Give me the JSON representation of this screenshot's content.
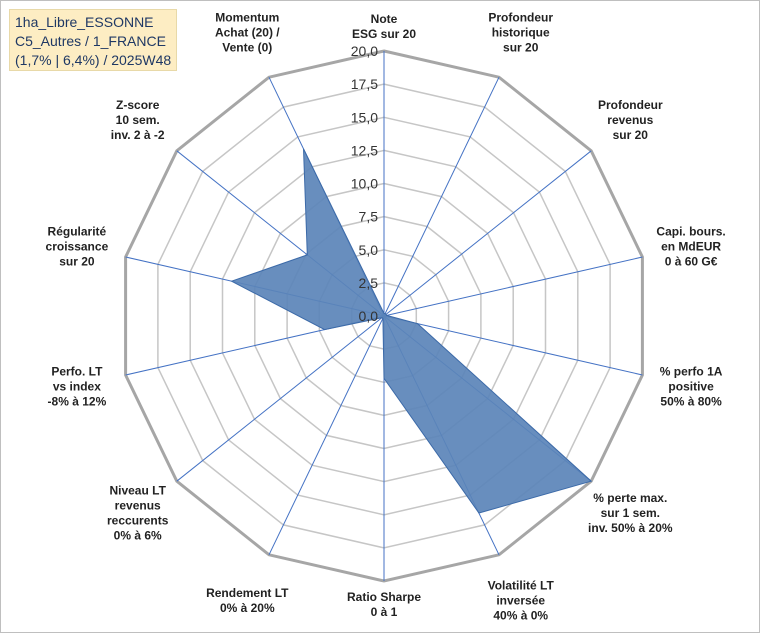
{
  "title_lines": [
    "1ha_Libre_ESSONNE",
    "C5_Autres / 1_FRANCE",
    "(1,7% | 6,4%) / 2025W48"
  ],
  "chart_data": {
    "type": "radar",
    "rmin": 0,
    "rmax": 20,
    "tick_values": [
      0,
      2.5,
      5,
      7.5,
      10,
      12.5,
      15,
      17.5,
      20
    ],
    "tick_labels": [
      "0,0",
      "2,5",
      "5,0",
      "7,5",
      "10,0",
      "12,5",
      "15,0",
      "17,5",
      "20,0"
    ],
    "axes": [
      {
        "label": [
          "Note",
          "ESG sur 20"
        ],
        "value": 0.2
      },
      {
        "label": [
          "Profondeur",
          "historique",
          "sur 20"
        ],
        "value": 0.2
      },
      {
        "label": [
          "Profondeur",
          "revenus",
          "sur 20"
        ],
        "value": 0.2
      },
      {
        "label": [
          "Capi. bours.",
          "en MdEUR",
          "0 à 60 G€"
        ],
        "value": 0.2
      },
      {
        "label": [
          "% perfo 1A",
          "positive",
          "50% à 80%"
        ],
        "value": 2.6
      },
      {
        "label": [
          "% perte max.",
          "sur 1 sem.",
          "inv. 50% à 20%"
        ],
        "value": 20.0
      },
      {
        "label": [
          "Volatilité LT",
          "inversée",
          "40% à 0%"
        ],
        "value": 16.5
      },
      {
        "label": [
          "Ratio Sharpe",
          "0 à 1"
        ],
        "value": 4.7
      },
      {
        "label": [
          "Rendement LT",
          "0% à 20%"
        ],
        "value": 0.2
      },
      {
        "label": [
          "Niveau LT",
          "revenus",
          "reccurents",
          "0% à 6%"
        ],
        "value": 0.2
      },
      {
        "label": [
          "Perfo. LT",
          "vs index",
          "-8% à 12%"
        ],
        "value": 4.6
      },
      {
        "label": [
          "Régularité",
          "croissance",
          "sur 20"
        ],
        "value": 11.8
      },
      {
        "label": [
          "Z-score",
          "10 sem.",
          "inv. 2 à -2"
        ],
        "value": 7.4
      },
      {
        "label": [
          "Momentum",
          "Achat (20) /",
          "Vente (0)"
        ],
        "value": 14.0
      }
    ],
    "colors": {
      "fill": "#5b84b9",
      "stroke": "#3c6aa8",
      "grid": "#c6c6c6",
      "outer": "#a6a6a6",
      "spoke": "#4472c4"
    }
  }
}
